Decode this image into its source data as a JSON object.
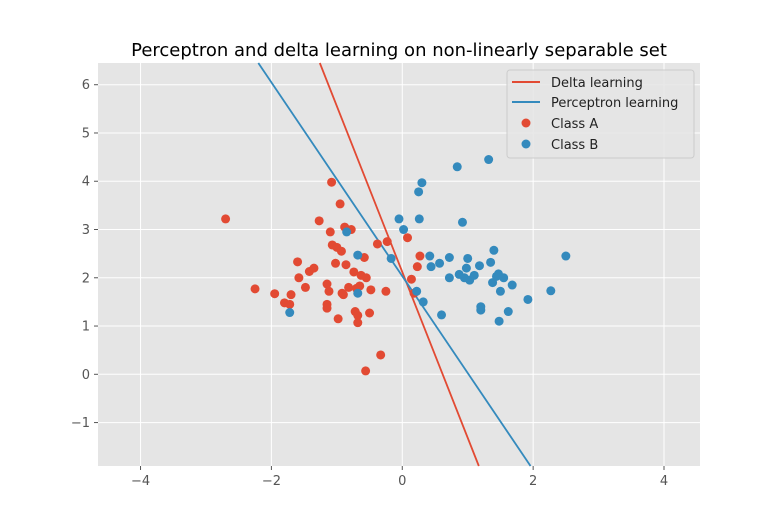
{
  "chart_data": {
    "type": "scatter",
    "title": "Perceptron and delta learning on non-linearly separable set",
    "xlabel": "",
    "ylabel": "",
    "xlim": [
      -4.65,
      4.55
    ],
    "ylim": [
      -1.9,
      6.45
    ],
    "x_ticks": [
      -4,
      -2,
      0,
      2,
      4
    ],
    "x_tick_labels": [
      "−4",
      "−2",
      "0",
      "2",
      "4"
    ],
    "y_ticks": [
      -1,
      0,
      1,
      2,
      3,
      4,
      5,
      6
    ],
    "y_tick_labels": [
      "−1",
      "0",
      "1",
      "2",
      "3",
      "4",
      "5",
      "6"
    ],
    "grid": true,
    "legend_position": "top-right",
    "lines": [
      {
        "name": "Delta learning",
        "color": "#E24A33",
        "points": [
          [
            -1.26,
            6.45
          ],
          [
            1.17,
            -1.9
          ]
        ]
      },
      {
        "name": "Perceptron learning",
        "color": "#348ABD",
        "points": [
          [
            -2.2,
            6.45
          ],
          [
            1.96,
            -1.9
          ]
        ]
      }
    ],
    "series": [
      {
        "name": "Class A",
        "color": "#E24A33",
        "points": [
          [
            -2.7,
            3.22
          ],
          [
            -2.25,
            1.77
          ],
          [
            -1.95,
            1.67
          ],
          [
            -1.8,
            1.48
          ],
          [
            -1.72,
            1.45
          ],
          [
            -1.7,
            1.65
          ],
          [
            -1.6,
            2.33
          ],
          [
            -1.58,
            2.0
          ],
          [
            -1.48,
            1.8
          ],
          [
            -1.42,
            2.13
          ],
          [
            -1.35,
            2.2
          ],
          [
            -1.27,
            3.18
          ],
          [
            -1.15,
            1.87
          ],
          [
            -1.15,
            1.45
          ],
          [
            -1.15,
            1.37
          ],
          [
            -1.12,
            1.72
          ],
          [
            -1.1,
            2.95
          ],
          [
            -1.08,
            3.98
          ],
          [
            -1.07,
            2.68
          ],
          [
            -1.02,
            2.3
          ],
          [
            -1.0,
            2.63
          ],
          [
            -0.98,
            1.15
          ],
          [
            -0.95,
            3.53
          ],
          [
            -0.93,
            2.55
          ],
          [
            -0.92,
            1.68
          ],
          [
            -0.9,
            1.65
          ],
          [
            -0.88,
            3.05
          ],
          [
            -0.86,
            2.27
          ],
          [
            -0.82,
            1.8
          ],
          [
            -0.78,
            3.0
          ],
          [
            -0.74,
            2.12
          ],
          [
            -0.72,
            1.3
          ],
          [
            -0.7,
            1.78
          ],
          [
            -0.68,
            1.22
          ],
          [
            -0.68,
            1.07
          ],
          [
            -0.65,
            1.83
          ],
          [
            -0.63,
            2.05
          ],
          [
            -0.58,
            2.42
          ],
          [
            -0.56,
            0.07
          ],
          [
            -0.55,
            2.0
          ],
          [
            -0.5,
            1.27
          ],
          [
            -0.48,
            1.75
          ],
          [
            -0.38,
            2.7
          ],
          [
            -0.33,
            0.4
          ],
          [
            -0.25,
            1.72
          ],
          [
            -0.23,
            2.75
          ],
          [
            0.08,
            2.83
          ],
          [
            0.14,
            1.97
          ],
          [
            0.18,
            1.68
          ],
          [
            0.23,
            2.23
          ],
          [
            0.27,
            2.45
          ]
        ]
      },
      {
        "name": "Class B",
        "color": "#348ABD",
        "points": [
          [
            -1.72,
            1.28
          ],
          [
            -0.85,
            2.95
          ],
          [
            -0.68,
            2.47
          ],
          [
            -0.68,
            1.68
          ],
          [
            -0.17,
            2.4
          ],
          [
            -0.05,
            3.22
          ],
          [
            0.02,
            3.0
          ],
          [
            0.22,
            1.72
          ],
          [
            0.25,
            3.78
          ],
          [
            0.26,
            3.22
          ],
          [
            0.3,
            3.97
          ],
          [
            0.32,
            1.5
          ],
          [
            0.42,
            2.45
          ],
          [
            0.44,
            2.23
          ],
          [
            0.57,
            2.3
          ],
          [
            0.6,
            1.23
          ],
          [
            0.72,
            2.42
          ],
          [
            0.72,
            2.0
          ],
          [
            0.84,
            4.3
          ],
          [
            0.87,
            2.07
          ],
          [
            0.92,
            3.15
          ],
          [
            0.95,
            2.0
          ],
          [
            0.98,
            2.2
          ],
          [
            1.0,
            2.4
          ],
          [
            1.03,
            1.95
          ],
          [
            1.1,
            2.05
          ],
          [
            1.18,
            2.25
          ],
          [
            1.2,
            1.33
          ],
          [
            1.2,
            1.4
          ],
          [
            1.32,
            4.45
          ],
          [
            1.35,
            2.32
          ],
          [
            1.38,
            1.9
          ],
          [
            1.4,
            2.57
          ],
          [
            1.44,
            2.03
          ],
          [
            1.47,
            2.08
          ],
          [
            1.48,
            1.1
          ],
          [
            1.5,
            1.72
          ],
          [
            1.55,
            2.0
          ],
          [
            1.62,
            1.3
          ],
          [
            1.68,
            1.85
          ],
          [
            1.92,
            1.55
          ],
          [
            2.27,
            1.73
          ],
          [
            2.5,
            2.45
          ]
        ]
      }
    ]
  }
}
